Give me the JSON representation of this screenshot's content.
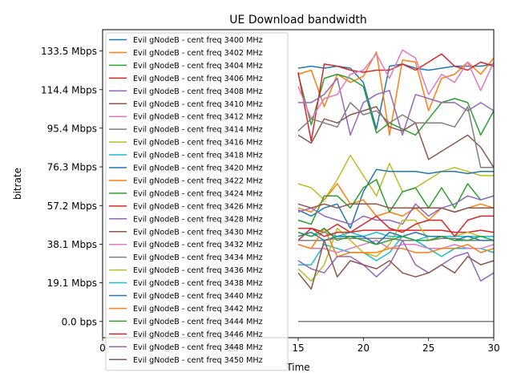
{
  "chart_data": {
    "type": "line",
    "title": "UE Download bandwidth",
    "xlabel": "Time",
    "ylabel": "bitrate",
    "xlim": [
      0,
      30
    ],
    "ylim": [
      -8,
      144
    ],
    "xticks": [
      0,
      5,
      10,
      15,
      20,
      25,
      30
    ],
    "xtick_labels": [
      "0",
      "5",
      "10",
      "15",
      "20",
      "25",
      "30"
    ],
    "yticks": [
      0,
      19.1,
      38.1,
      57.2,
      76.3,
      95.4,
      114.4,
      133.5
    ],
    "ytick_labels": [
      "0.0 bps",
      "19.1 Mbps",
      "38.1 Mbps",
      "57.2 Mbps",
      "76.3 Mbps",
      "95.4 Mbps",
      "114.4 Mbps",
      "133.5 Mbps"
    ],
    "grid": false,
    "legend_position": "top-left",
    "x": [
      15,
      16,
      17,
      18,
      19,
      20,
      21,
      22,
      23,
      24,
      25,
      26,
      27,
      28,
      29,
      30
    ],
    "series": [
      {
        "name": "Evil gNodeB - cent freq 3400 MHz",
        "color": "#1f77b4",
        "values": [
          125,
          126,
          125,
          126,
          125,
          118,
          95,
          126,
          127,
          125,
          124,
          125,
          126,
          126,
          126,
          127
        ]
      },
      {
        "name": "Evil gNodeB - cent freq 3402 MHz",
        "color": "#ff7f0e",
        "values": [
          122,
          124,
          106,
          122,
          118,
          121,
          133,
          92,
          129,
          128,
          104,
          120,
          122,
          128,
          122,
          130
        ]
      },
      {
        "name": "Evil gNodeB - cent freq 3404 MHz",
        "color": "#2ca02c",
        "values": [
          122,
          97,
          120,
          122,
          120,
          116,
          93,
          98,
          95,
          92,
          100,
          108,
          110,
          108,
          92,
          104
        ]
      },
      {
        "name": "Evil gNodeB - cent freq 3406 MHz",
        "color": "#d62728",
        "values": [
          123,
          89,
          127,
          126,
          124,
          123,
          124,
          124,
          127,
          124,
          128,
          132,
          126,
          124,
          128,
          126
        ]
      },
      {
        "name": "Evil gNodeB - cent freq 3408 MHz",
        "color": "#9467bd",
        "values": [
          108,
          108,
          112,
          120,
          92,
          108,
          112,
          114,
          92,
          112,
          110,
          108,
          108,
          104,
          108,
          104
        ]
      },
      {
        "name": "Evil gNodeB - cent freq 3410 MHz",
        "color": "#8c564b",
        "values": [
          92,
          88,
          100,
          98,
          102,
          104,
          106,
          96,
          94,
          98,
          80,
          84,
          88,
          92,
          86,
          76
        ]
      },
      {
        "name": "Evil gNodeB - cent freq 3412 MHz",
        "color": "#e377c2",
        "values": [
          116,
          100,
          110,
          112,
          122,
          124,
          132,
          120,
          134,
          130,
          112,
          122,
          118,
          128,
          114,
          128
        ]
      },
      {
        "name": "Evil gNodeB - cent freq 3414 MHz",
        "color": "#7f7f7f",
        "values": [
          94,
          100,
          98,
          96,
          108,
          102,
          104,
          98,
          102,
          98,
          98,
          98,
          96,
          106,
          76,
          76
        ]
      },
      {
        "name": "Evil gNodeB - cent freq 3416 MHz",
        "color": "#bcbd22",
        "values": [
          68,
          66,
          60,
          70,
          82,
          72,
          62,
          78,
          64,
          66,
          70,
          74,
          76,
          74,
          72,
          72
        ]
      },
      {
        "name": "Evil gNodeB - cent freq 3418 MHz",
        "color": "#17becf",
        "values": [
          28,
          28,
          38,
          36,
          34,
          34,
          30,
          34,
          42,
          40,
          36,
          32,
          36,
          36,
          36,
          34
        ]
      },
      {
        "name": "Evil gNodeB - cent freq 3420 MHz",
        "color": "#1f77b4",
        "values": [
          55,
          52,
          56,
          58,
          46,
          64,
          75,
          74,
          74,
          74,
          73,
          74,
          74,
          73,
          74,
          74
        ]
      },
      {
        "name": "Evil gNodeB - cent freq 3422 MHz",
        "color": "#ff7f0e",
        "values": [
          56,
          54,
          60,
          68,
          58,
          60,
          52,
          54,
          52,
          56,
          50,
          56,
          54,
          56,
          58,
          56
        ]
      },
      {
        "name": "Evil gNodeB - cent freq 3424 MHz",
        "color": "#2ca02c",
        "values": [
          50,
          48,
          62,
          62,
          56,
          66,
          70,
          54,
          64,
          66,
          56,
          66,
          56,
          68,
          60,
          62
        ]
      },
      {
        "name": "Evil gNodeB - cent freq 3426 MHz",
        "color": "#d62728",
        "values": [
          40,
          46,
          44,
          48,
          44,
          45,
          45,
          45,
          45,
          45,
          45,
          45,
          44,
          44,
          45,
          44
        ]
      },
      {
        "name": "Evil gNodeB - cent freq 3428 MHz",
        "color": "#9467bd",
        "values": [
          54,
          56,
          52,
          50,
          48,
          52,
          50,
          50,
          48,
          58,
          52,
          56,
          58,
          62,
          60,
          62
        ]
      },
      {
        "name": "Evil gNodeB - cent freq 3430 MHz",
        "color": "#8c564b",
        "values": [
          58,
          56,
          58,
          56,
          58,
          58,
          58,
          56,
          56,
          56,
          56,
          56,
          54,
          56,
          56,
          56
        ]
      },
      {
        "name": "Evil gNodeB - cent freq 3432 MHz",
        "color": "#e377c2",
        "values": [
          38,
          36,
          36,
          34,
          36,
          38,
          40,
          36,
          38,
          38,
          36,
          36,
          38,
          36,
          36,
          38
        ]
      },
      {
        "name": "Evil gNodeB - cent freq 3434 MHz",
        "color": "#7f7f7f",
        "values": [
          40,
          40,
          40,
          41,
          41,
          41,
          41,
          41,
          40,
          40,
          40,
          41,
          41,
          40,
          40,
          40
        ]
      },
      {
        "name": "Evil gNodeB - cent freq 3436 MHz",
        "color": "#bcbd22",
        "values": [
          26,
          20,
          28,
          46,
          40,
          34,
          32,
          38,
          50,
          50,
          40,
          42,
          42,
          44,
          42,
          42
        ]
      },
      {
        "name": "Evil gNodeB - cent freq 3438 MHz",
        "color": "#17becf",
        "values": [
          44,
          42,
          44,
          42,
          44,
          42,
          44,
          42,
          42,
          40,
          42,
          42,
          42,
          42,
          42,
          42
        ]
      },
      {
        "name": "Evil gNodeB - cent freq 3440 MHz",
        "color": "#1f77b4",
        "values": [
          42,
          44,
          40,
          42,
          42,
          42,
          38,
          44,
          42,
          44,
          42,
          42,
          40,
          42,
          40,
          40
        ]
      },
      {
        "name": "Evil gNodeB - cent freq 3442 MHz",
        "color": "#ff7f0e",
        "values": [
          38,
          36,
          46,
          32,
          34,
          34,
          34,
          36,
          36,
          34,
          34,
          36,
          36,
          38,
          34,
          36
        ]
      },
      {
        "name": "Evil gNodeB - cent freq 3444 MHz",
        "color": "#2ca02c",
        "values": [
          44,
          42,
          46,
          40,
          42,
          40,
          38,
          40,
          42,
          40,
          40,
          42,
          40,
          40,
          42,
          40
        ]
      },
      {
        "name": "Evil gNodeB - cent freq 3446 MHz",
        "color": "#d62728",
        "values": [
          46,
          46,
          42,
          44,
          44,
          48,
          52,
          46,
          44,
          48,
          50,
          50,
          42,
          50,
          52,
          52
        ]
      },
      {
        "name": "Evil gNodeB - cent freq 3448 MHz",
        "color": "#9467bd",
        "values": [
          30,
          26,
          24,
          32,
          32,
          28,
          22,
          28,
          40,
          28,
          24,
          28,
          32,
          34,
          20,
          24
        ]
      },
      {
        "name": "Evil gNodeB - cent freq 3450 MHz",
        "color": "#8c564b",
        "values": [
          24,
          16,
          40,
          22,
          30,
          28,
          26,
          30,
          24,
          22,
          24,
          28,
          24,
          32,
          28,
          30
        ]
      }
    ],
    "flat_series": {
      "color": "#7f7f7f",
      "value": 0
    }
  }
}
